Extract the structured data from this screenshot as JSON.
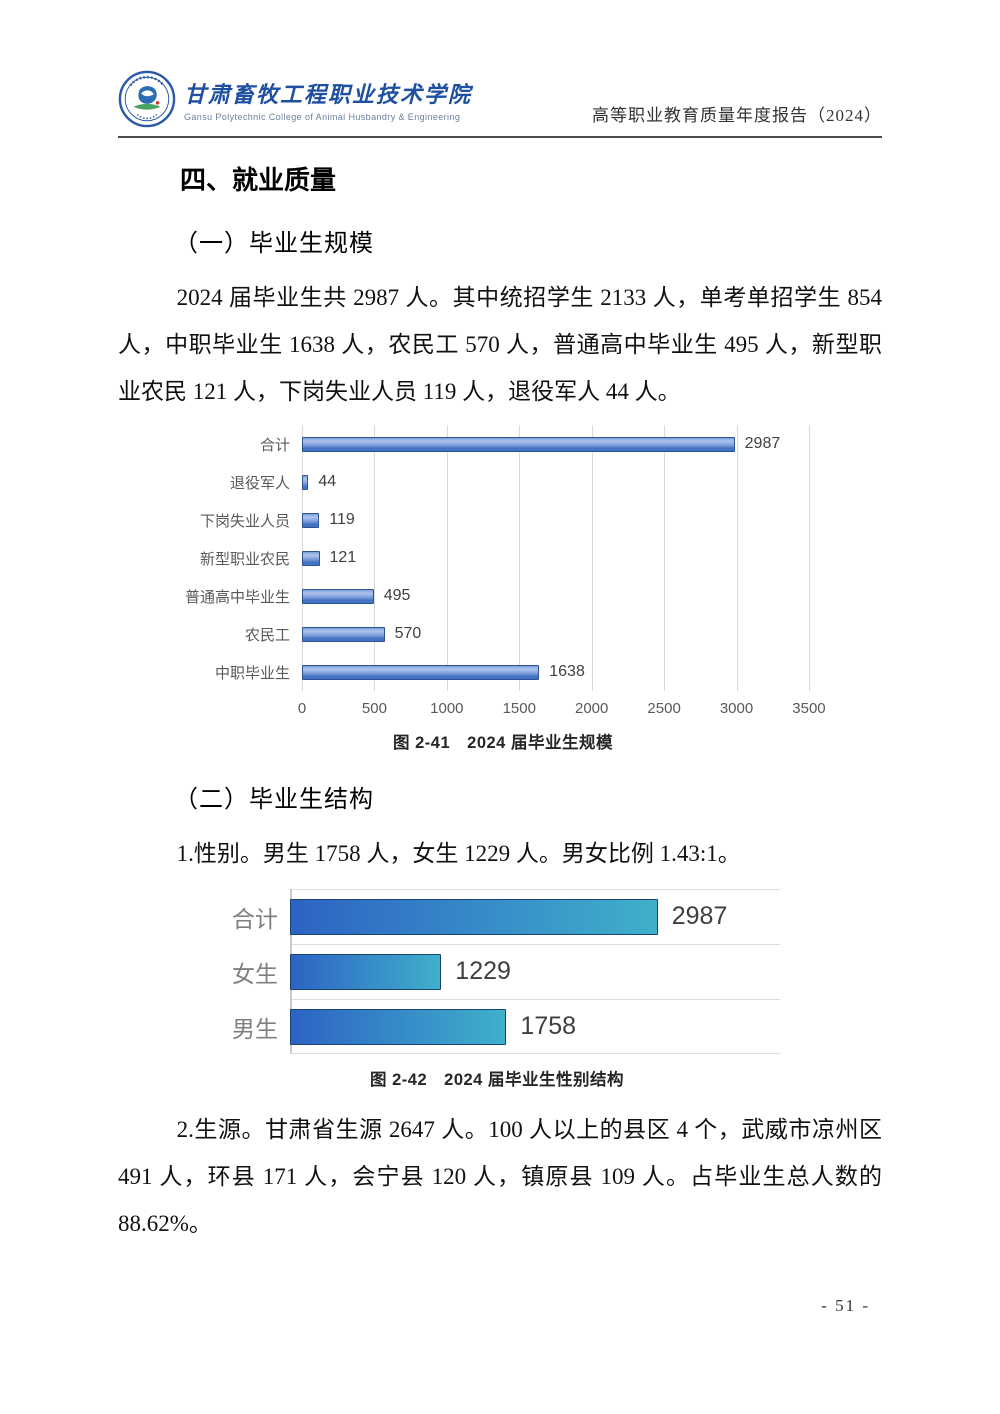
{
  "header": {
    "college_name_zh": "甘肃畜牧工程职业技术学院",
    "college_name_en": "Gansu Polytechnic College of Animal Husbandry & Engineering",
    "report_title": "高等职业教育质量年度报告（2024）",
    "logo_icon": "college-emblem-icon",
    "brand_blue": "#1e4fa0"
  },
  "content": {
    "section_title": "四、就业质量",
    "subsection1_title": "（一）毕业生规模",
    "paragraph1": "2024 届毕业生共 2987 人。其中统招学生 2133 人，单考单招学生 854 人，中职毕业生 1638 人，农民工 570 人，普通高中毕业生 495 人，新型职业农民 121 人，下岗失业人员 119 人，退役军人 44 人。",
    "subsection2_title": "（二）毕业生结构",
    "paragraph2": "1.性别。男生 1758 人，女生 1229 人。男女比例 1.43:1。",
    "paragraph3": "2.生源。甘肃省生源 2647 人。100 人以上的县区 4 个，武威市凉州区 491 人，环县 171 人，会宁县 120 人，镇原县 109 人。占毕业生总人数的 88.62%。"
  },
  "footer": {
    "page_number": "- 51 -"
  },
  "chart_data": [
    {
      "type": "bar",
      "orientation": "horizontal",
      "caption": "图 2-41　2024 届毕业生规模",
      "categories": [
        "合计",
        "退役军人",
        "下岗失业人员",
        "新型职业农民",
        "普通高中毕业生",
        "农民工",
        "中职毕业生"
      ],
      "values": [
        2987,
        44,
        119,
        121,
        495,
        570,
        1638
      ],
      "xlim": [
        0,
        3590
      ],
      "xticks": [
        0,
        500,
        1000,
        1500,
        2000,
        2500,
        3000,
        3500
      ],
      "grid": true,
      "legend": "none",
      "bar_style": {
        "border": "#2e5395",
        "highlight": "#aec5ef",
        "mid": "#7e9fd9",
        "main": "#4472c4"
      },
      "gridline_color": "#d9d9d9",
      "label_color": "#595959",
      "value_label_color": "#404040"
    },
    {
      "type": "bar",
      "orientation": "horizontal",
      "caption": "图 2-42　2024 届毕业生性别结构",
      "categories": [
        "合计",
        "女生",
        "男生"
      ],
      "values": [
        2987,
        1229,
        1758
      ],
      "xlim": [
        0,
        3980
      ],
      "xticks": [],
      "grid": false,
      "legend": "none",
      "bar_style": {
        "border": "#17456e",
        "gradient_left": "#2d63c4",
        "gradient_right": "#3fb0ca"
      },
      "gridline_color": "#dedede",
      "label_color": "#7f7f7f",
      "value_label_color": "#3f3f3f"
    }
  ]
}
